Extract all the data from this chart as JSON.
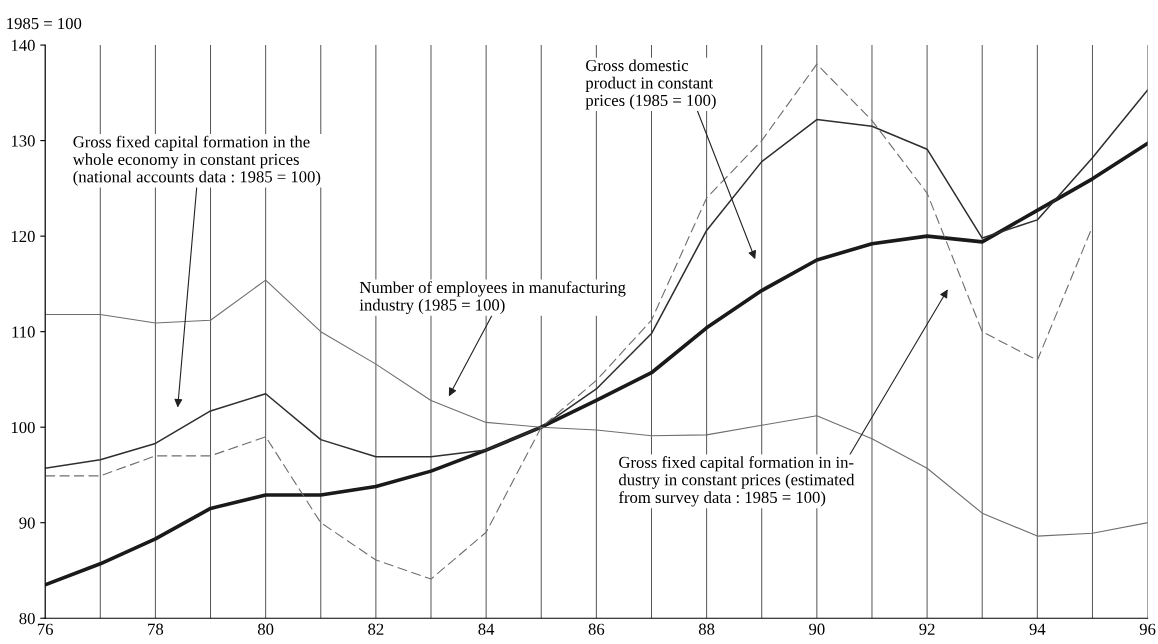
{
  "chart_data": {
    "type": "line",
    "ylabel": "1985 = 100",
    "x": [
      76,
      77,
      78,
      79,
      80,
      81,
      82,
      83,
      84,
      85,
      86,
      87,
      88,
      89,
      90,
      91,
      92,
      93,
      94,
      95,
      96
    ],
    "series": [
      {
        "color": "#1a1a1a",
        "line_style": "solid",
        "values": [
          83.5,
          85.7,
          88.3,
          91.5,
          92.9,
          92.9,
          93.8,
          95.4,
          97.6,
          100,
          102.8,
          105.7,
          110.4,
          114.3,
          117.5,
          119.2,
          120,
          119.4,
          122.7,
          126,
          129.7
        ]
      },
      {
        "color": "#2e2e2e",
        "line_style": "solid",
        "values": [
          95.7,
          96.6,
          98.3,
          101.7,
          103.5,
          98.7,
          96.9,
          96.9,
          97.6,
          100,
          104,
          109.8,
          120.6,
          127.8,
          132.2,
          131.5,
          129.1,
          119.8,
          121.7,
          128.2,
          135.3
        ]
      },
      {
        "color": "#6e6e6e",
        "line_style": "solid",
        "values": [
          111.8,
          111.8,
          110.9,
          111.2,
          115.4,
          110,
          106.6,
          102.8,
          100.5,
          100,
          99.7,
          99.1,
          99.2,
          100.2,
          101.2,
          98.8,
          95.7,
          91,
          88.6,
          88.9,
          90
        ]
      },
      {
        "color": "#6e6e6e",
        "line_style": "dashed",
        "values": [
          94.9,
          94.9,
          97,
          97,
          99,
          90,
          86.1,
          84.1,
          89,
          100,
          104.9,
          111.2,
          124,
          130,
          138,
          132.1,
          124.5,
          110,
          107,
          121,
          null
        ]
      }
    ],
    "xlim": [
      76,
      96
    ],
    "xticks": [
      76,
      78,
      80,
      82,
      84,
      86,
      88,
      90,
      92,
      94,
      96
    ],
    "ylim": [
      80,
      140
    ],
    "yticks": [
      80,
      90,
      100,
      110,
      120,
      130,
      140
    ],
    "grid": "x",
    "marker": "none",
    "legend": false,
    "annotations": [
      "Gross fixed capital formation in the\nwhole economy in constant prices\n(national accounts data : 1985 = 100)",
      "Number of employees in manufacturing\nindustry (1985 = 100)",
      "Gross domestic\nproduct in constant\nprices (1985 = 100)",
      "Gross fixed capital formation in in-\ndustry in constant prices (estimated\nfrom survey data : 1985 = 100)"
    ]
  }
}
